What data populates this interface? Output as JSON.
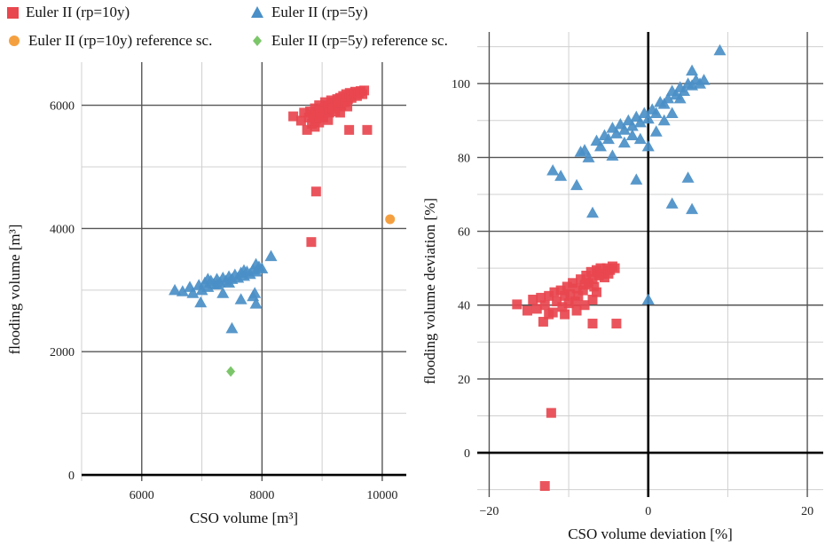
{
  "legend": [
    {
      "label": "Euler II (rp=10y)",
      "shape": "square",
      "color": "#e8474f"
    },
    {
      "label": "Euler II (rp=5y)",
      "shape": "triangle",
      "color": "#4a8fc7"
    },
    {
      "label": "Euler II (rp=10y) reference sc.",
      "shape": "circle",
      "color": "#f5a040"
    },
    {
      "label": "Euler II (rp=5y) reference sc.",
      "shape": "diamond",
      "color": "#7cc66a"
    }
  ],
  "chart_data": [
    {
      "type": "scatter",
      "title": "",
      "xlabel": "CSO volume [m³]",
      "ylabel": "flooding volume [m³]",
      "xlim": [
        5000,
        10400
      ],
      "ylim": [
        -100,
        6700
      ],
      "xticks": [
        6000,
        8000,
        10000
      ],
      "yticks": [
        0,
        2000,
        4000,
        6000
      ],
      "grid": true,
      "series": [
        {
          "name": "Euler II (rp=10y)",
          "shape": "square",
          "color": "#e8474f",
          "points": [
            [
              8520,
              5820
            ],
            [
              8650,
              5750
            ],
            [
              8700,
              5880
            ],
            [
              8750,
              5600
            ],
            [
              8780,
              5800
            ],
            [
              8800,
              5900
            ],
            [
              8830,
              5700
            ],
            [
              8850,
              5850
            ],
            [
              8880,
              5950
            ],
            [
              8900,
              5780
            ],
            [
              8920,
              5900
            ],
            [
              8950,
              6000
            ],
            [
              8970,
              5850
            ],
            [
              9000,
              5950
            ],
            [
              9020,
              5800
            ],
            [
              9050,
              6050
            ],
            [
              9070,
              5900
            ],
            [
              9100,
              6000
            ],
            [
              9120,
              5880
            ],
            [
              9150,
              6080
            ],
            [
              9170,
              5950
            ],
            [
              9200,
              6050
            ],
            [
              9220,
              5900
            ],
            [
              9250,
              6100
            ],
            [
              9270,
              5980
            ],
            [
              9300,
              6120
            ],
            [
              9320,
              6000
            ],
            [
              9350,
              6150
            ],
            [
              9380,
              6050
            ],
            [
              9400,
              6180
            ],
            [
              9430,
              6100
            ],
            [
              9460,
              6200
            ],
            [
              9490,
              6120
            ],
            [
              9520,
              6180
            ],
            [
              9550,
              6220
            ],
            [
              9580,
              6150
            ],
            [
              9610,
              6200
            ],
            [
              9640,
              6230
            ],
            [
              9670,
              6180
            ],
            [
              9700,
              6240
            ],
            [
              9420,
              5980
            ],
            [
              9300,
              5880
            ],
            [
              9100,
              5760
            ],
            [
              8950,
              5720
            ],
            [
              8880,
              5650
            ],
            [
              9750,
              5600
            ],
            [
              9450,
              5600
            ],
            [
              8900,
              4600
            ],
            [
              8820,
              3780
            ]
          ]
        },
        {
          "name": "Euler II (rp=5y)",
          "shape": "triangle",
          "color": "#4a8fc7",
          "points": [
            [
              6550,
              3000
            ],
            [
              6680,
              2980
            ],
            [
              6800,
              3050
            ],
            [
              6850,
              2950
            ],
            [
              6950,
              3080
            ],
            [
              7000,
              3000
            ],
            [
              7050,
              3120
            ],
            [
              7100,
              3050
            ],
            [
              7150,
              3150
            ],
            [
              7200,
              3100
            ],
            [
              7250,
              3180
            ],
            [
              7300,
              3120
            ],
            [
              7350,
              3200
            ],
            [
              7400,
              3150
            ],
            [
              7450,
              3220
            ],
            [
              7500,
              3180
            ],
            [
              7550,
              3250
            ],
            [
              7600,
              3200
            ],
            [
              7650,
              3280
            ],
            [
              7700,
              3230
            ],
            [
              7750,
              3300
            ],
            [
              7800,
              3260
            ],
            [
              7850,
              3330
            ],
            [
              7900,
              3300
            ],
            [
              7950,
              3380
            ],
            [
              8000,
              3350
            ],
            [
              8150,
              3550
            ],
            [
              7100,
              3180
            ],
            [
              7250,
              3090
            ],
            [
              7450,
              3120
            ],
            [
              7700,
              3320
            ],
            [
              7900,
              3420
            ],
            [
              6980,
              2800
            ],
            [
              7350,
              2950
            ],
            [
              7650,
              2850
            ],
            [
              7850,
              2900
            ],
            [
              7880,
              2950
            ],
            [
              7900,
              2780
            ],
            [
              7500,
              2380
            ]
          ]
        },
        {
          "name": "Euler II (rp=10y) reference sc.",
          "shape": "circle",
          "color": "#f5a040",
          "points": [
            [
              10130,
              4150
            ]
          ]
        },
        {
          "name": "Euler II (rp=5y) reference sc.",
          "shape": "diamond",
          "color": "#7cc66a",
          "points": [
            [
              7480,
              1680
            ]
          ]
        }
      ]
    },
    {
      "type": "scatter",
      "title": "",
      "xlabel": "CSO volume deviation [%]",
      "ylabel": "flooding volume deviation [%]",
      "xlim": [
        -21.5,
        22
      ],
      "ylim": [
        -12,
        114
      ],
      "xticks": [
        -20,
        0,
        20
      ],
      "yticks": [
        0,
        20,
        40,
        60,
        80,
        100
      ],
      "grid": true,
      "series": [
        {
          "name": "Euler II (rp=10y)",
          "shape": "square",
          "color": "#e8474f",
          "points": [
            [
              -16.5,
              40.2
            ],
            [
              -15.2,
              38.5
            ],
            [
              -14.5,
              41.5
            ],
            [
              -14,
              39
            ],
            [
              -13.5,
              42
            ],
            [
              -13.2,
              35.5
            ],
            [
              -13,
              40
            ],
            [
              -12.5,
              42.5
            ],
            [
              -12,
              38
            ],
            [
              -11.8,
              43.5
            ],
            [
              -11.5,
              41
            ],
            [
              -11,
              44
            ],
            [
              -10.8,
              39.5
            ],
            [
              -10.5,
              42.5
            ],
            [
              -10.2,
              45
            ],
            [
              -10,
              40.5
            ],
            [
              -9.8,
              43
            ],
            [
              -9.5,
              46
            ],
            [
              -9.2,
              41
            ],
            [
              -9,
              44.5
            ],
            [
              -8.8,
              42.5
            ],
            [
              -8.5,
              47
            ],
            [
              -8.2,
              44
            ],
            [
              -8,
              45.5
            ],
            [
              -7.8,
              48
            ],
            [
              -7.5,
              46
            ],
            [
              -7.2,
              49
            ],
            [
              -7,
              47
            ],
            [
              -6.8,
              45
            ],
            [
              -6.5,
              49.5
            ],
            [
              -6.2,
              48
            ],
            [
              -6,
              50
            ],
            [
              -5.8,
              48.5
            ],
            [
              -5.5,
              47.5
            ],
            [
              -5.2,
              50
            ],
            [
              -5,
              48.5
            ],
            [
              -4.8,
              49.5
            ],
            [
              -4.5,
              50.5
            ],
            [
              -4.2,
              50
            ],
            [
              -12.5,
              37.5
            ],
            [
              -10.5,
              37.5
            ],
            [
              -9,
              38.5
            ],
            [
              -8,
              40
            ],
            [
              -7,
              41.5
            ],
            [
              -6.5,
              43.5
            ],
            [
              -7,
              35
            ],
            [
              -4,
              35
            ],
            [
              -12.2,
              10.8
            ],
            [
              -13,
              -9
            ]
          ]
        },
        {
          "name": "Euler II (rp=5y)",
          "shape": "triangle",
          "color": "#4a8fc7",
          "points": [
            [
              -12,
              76.5
            ],
            [
              -11,
              75
            ],
            [
              -9,
              72.5
            ],
            [
              -8.5,
              81.5
            ],
            [
              -8,
              82
            ],
            [
              -7.5,
              80
            ],
            [
              -7,
              65
            ],
            [
              -6.5,
              84.5
            ],
            [
              -6,
              83
            ],
            [
              -5.5,
              86
            ],
            [
              -5,
              85
            ],
            [
              -4.5,
              88
            ],
            [
              -4,
              86.5
            ],
            [
              -3.5,
              89
            ],
            [
              -3,
              87.5
            ],
            [
              -2.5,
              90
            ],
            [
              -2,
              88.5
            ],
            [
              -1.5,
              91
            ],
            [
              -1,
              89.5
            ],
            [
              -0.5,
              92
            ],
            [
              0,
              90.5
            ],
            [
              0.5,
              93
            ],
            [
              1,
              92
            ],
            [
              1.5,
              95
            ],
            [
              2,
              94.5
            ],
            [
              2.5,
              96
            ],
            [
              3,
              98
            ],
            [
              3.5,
              97
            ],
            [
              4,
              99
            ],
            [
              4.5,
              98
            ],
            [
              5,
              100
            ],
            [
              5.5,
              99.5
            ],
            [
              6,
              101
            ],
            [
              6.5,
              100
            ],
            [
              7,
              101
            ],
            [
              9,
              109
            ],
            [
              -4.5,
              80.5
            ],
            [
              -3,
              84
            ],
            [
              -2,
              86
            ],
            [
              -1,
              85
            ],
            [
              0,
              83
            ],
            [
              1,
              87
            ],
            [
              2,
              90
            ],
            [
              3,
              92
            ],
            [
              4,
              96
            ],
            [
              5.5,
              103.5
            ],
            [
              -1.5,
              74
            ],
            [
              0,
              41.5
            ],
            [
              3,
              67.5
            ],
            [
              5,
              74.5
            ],
            [
              5.5,
              66
            ]
          ]
        }
      ]
    }
  ]
}
